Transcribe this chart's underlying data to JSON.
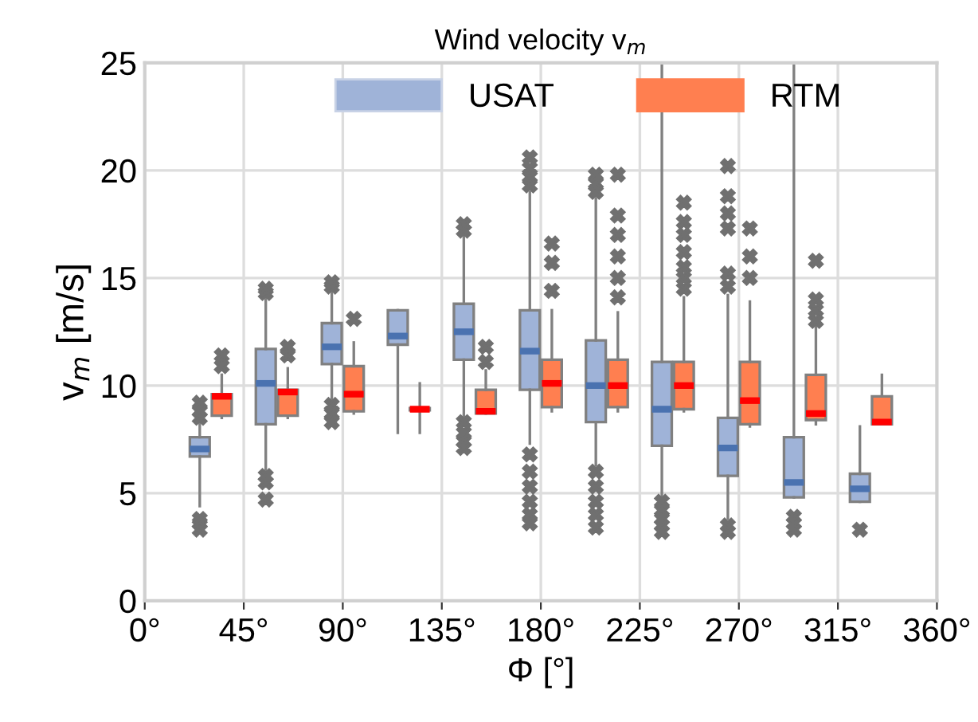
{
  "chart_data": {
    "type": "box",
    "title": "Wind velocity v$_{m}$",
    "xlabel": "Φ [°]",
    "ylabel": "v$_{m}$ [m/s]",
    "xlim": [
      0,
      360
    ],
    "ylim": [
      0,
      25
    ],
    "xticks": [
      {
        "value": 0,
        "label": "0°"
      },
      {
        "value": 45,
        "label": "45°"
      },
      {
        "value": 90,
        "label": "90°"
      },
      {
        "value": 135,
        "label": "135°"
      },
      {
        "value": 180,
        "label": "180°"
      },
      {
        "value": 225,
        "label": "225°"
      },
      {
        "value": 270,
        "label": "270°"
      },
      {
        "value": 315,
        "label": "315°"
      },
      {
        "value": 360,
        "label": "360°"
      }
    ],
    "yticks": [
      0,
      5,
      10,
      15,
      20,
      25
    ],
    "grid": true,
    "legend": "top",
    "marker": "cross",
    "series": [
      {
        "name": "USAT",
        "color": "#9fb3d8",
        "x": [
          25,
          55,
          85,
          115,
          145,
          175,
          205,
          235,
          265,
          295,
          325
        ],
        "boxes": [
          {
            "low": 4.4,
            "q1": 6.7,
            "median": 7.05,
            "q3": 7.6,
            "high": 8.3,
            "outliers": [
              8.5,
              8.8,
              9.2,
              3.3,
              3.6,
              3.8
            ]
          },
          {
            "low": 6.0,
            "q1": 8.2,
            "median": 10.1,
            "q3": 11.7,
            "high": 14.2,
            "outliers": [
              14.3,
              14.5,
              5.5,
              5.8,
              4.7
            ]
          },
          {
            "low": 9.3,
            "q1": 11.0,
            "median": 11.8,
            "q3": 12.9,
            "high": 14.5,
            "outliers": [
              14.6,
              14.8,
              9.1,
              8.7,
              8.3
            ]
          },
          {
            "low": 7.8,
            "q1": 11.9,
            "median": 12.3,
            "q3": 13.5,
            "high": 13.5
          },
          {
            "low": 8.6,
            "q1": 11.2,
            "median": 12.5,
            "q3": 13.8,
            "high": 17.0,
            "outliers": [
              17.2,
              17.5,
              8.3,
              7.8,
              7.4,
              7.1
            ]
          },
          {
            "low": 7.3,
            "q1": 9.8,
            "median": 11.6,
            "q3": 13.5,
            "high": 19.0,
            "outliers": [
              19.3,
              19.7,
              20.1,
              20.6,
              6.8,
              6.0,
              5.3,
              4.6,
              4.0,
              3.6
            ]
          },
          {
            "low": 6.3,
            "q1": 8.3,
            "median": 10.0,
            "q3": 12.1,
            "high": 18.7,
            "outliers": [
              19.0,
              19.4,
              19.8,
              6.0,
              5.3,
              4.6,
              4.0,
              3.4
            ]
          },
          {
            "low": 4.9,
            "q1": 7.2,
            "median": 8.9,
            "q3": 11.1,
            "high": 25,
            "outliers": [
              4.6,
              4.2,
              3.8,
              3.5,
              3.2
            ]
          },
          {
            "low": 3.8,
            "q1": 5.8,
            "median": 7.1,
            "q3": 8.5,
            "high": 14.2,
            "outliers": [
              14.6,
              15.2,
              17.3,
              18.0,
              18.8,
              20.2,
              3.5,
              3.2
            ]
          },
          {
            "low": 4.8,
            "q1": 4.8,
            "median": 5.5,
            "q3": 7.6,
            "high": 25,
            "outliers": [
              3.9,
              3.6,
              3.3
            ]
          },
          {
            "low": 4.6,
            "q1": 4.6,
            "median": 5.2,
            "q3": 5.9,
            "high": 8.1,
            "outliers": [
              3.3
            ]
          }
        ]
      },
      {
        "name": "RTM",
        "color": "#ff7f50",
        "x": [
          35,
          65,
          95,
          125,
          155,
          185,
          215,
          245,
          275,
          305,
          335
        ],
        "boxes": [
          {
            "low": 8.5,
            "q1": 8.6,
            "median": 9.5,
            "q3": 9.6,
            "high": 10.5,
            "outliers": [
              10.9,
              11.4
            ]
          },
          {
            "low": 8.5,
            "q1": 8.6,
            "median": 9.7,
            "q3": 9.8,
            "high": 10.8,
            "outliers": [
              11.4,
              11.8
            ]
          },
          {
            "low": 8.7,
            "q1": 8.8,
            "median": 9.6,
            "q3": 10.9,
            "high": 12.0,
            "outliers": [
              13.1
            ]
          },
          {
            "low": 7.8,
            "q1": 8.85,
            "median": 8.9,
            "q3": 8.95,
            "high": 10.1
          },
          {
            "low": 8.7,
            "q1": 8.7,
            "median": 8.8,
            "q3": 9.8,
            "high": 10.7,
            "outliers": [
              11.1,
              11.8
            ]
          },
          {
            "low": 8.8,
            "q1": 9.0,
            "median": 10.1,
            "q3": 11.2,
            "high": 13.5,
            "outliers": [
              14.4,
              15.7,
              16.6
            ]
          },
          {
            "low": 8.8,
            "q1": 9.0,
            "median": 10.0,
            "q3": 11.2,
            "high": 13.4,
            "outliers": [
              14.1,
              15.0,
              16.0,
              17.0,
              17.9,
              19.8
            ]
          },
          {
            "low": 8.8,
            "q1": 8.9,
            "median": 10.0,
            "q3": 11.1,
            "high": 14.1,
            "outliers": [
              14.5,
              15.0,
              15.5,
              16.2,
              17.0,
              17.6,
              18.5
            ]
          },
          {
            "low": 8.1,
            "q1": 8.2,
            "median": 9.3,
            "q3": 11.1,
            "high": 13.9,
            "outliers": [
              15.0,
              16.0,
              17.3
            ]
          },
          {
            "low": 8.2,
            "q1": 8.4,
            "median": 8.7,
            "q3": 10.5,
            "high": 12.8,
            "outliers": [
              13.0,
              13.5,
              14.0,
              15.8
            ]
          },
          {
            "low": 8.2,
            "q1": 8.2,
            "median": 8.3,
            "q3": 9.5,
            "high": 10.5
          }
        ]
      }
    ]
  }
}
